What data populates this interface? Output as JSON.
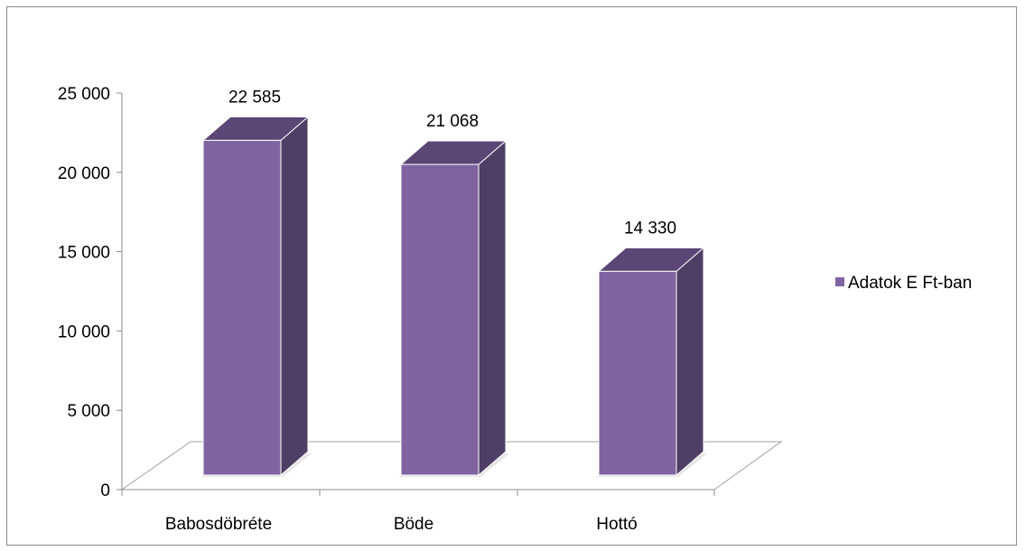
{
  "chart_data": {
    "type": "bar",
    "style": "3d-column",
    "categories": [
      "Babosdöbréte",
      "Böde",
      "Hottó"
    ],
    "series": [
      {
        "name": "Adatok E Ft-ban",
        "values": [
          22585,
          21068,
          14330
        ],
        "color": "#8064a2"
      }
    ],
    "data_labels": [
      "22 585",
      "21 068",
      "14 330"
    ],
    "y_ticks": [
      {
        "value": 0,
        "label": "0"
      },
      {
        "value": 5000,
        "label": "5 000"
      },
      {
        "value": 10000,
        "label": "10 000"
      },
      {
        "value": 15000,
        "label": "15 000"
      },
      {
        "value": 20000,
        "label": "20 000"
      },
      {
        "value": 25000,
        "label": "25 000"
      }
    ],
    "ylim": [
      0,
      25000
    ],
    "grid": false,
    "legend": {
      "placement": "right",
      "label": "Adatok E Ft-ban"
    },
    "colors": {
      "bar_front": "#8064a2",
      "bar_side": "#4f3f66",
      "bar_top": "#5b4676",
      "axis": "#8c8c8c",
      "frame": "#8c8c8c"
    }
  }
}
